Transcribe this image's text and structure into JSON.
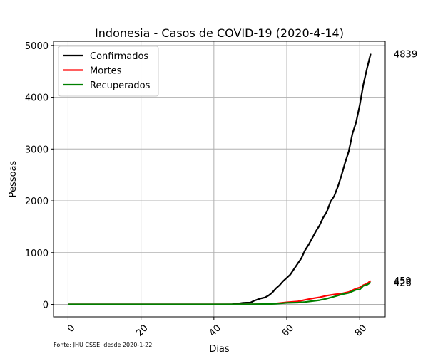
{
  "chart_data": {
    "type": "line",
    "title": "Indonesia - Casos de COVID-19 (2020-4-14)",
    "xlabel": "Dias",
    "ylabel": "Pessoas",
    "xlim": [
      -4,
      87
    ],
    "ylim": [
      -240,
      5080
    ],
    "xticks": [
      0,
      20,
      40,
      60,
      80
    ],
    "yticks": [
      0,
      1000,
      2000,
      3000,
      4000,
      5000
    ],
    "grid": true,
    "legend_position": "top-left",
    "footnote": "Fonte: JHU CSSE, desde 2020-1-22",
    "series": [
      {
        "name": "Confirmados",
        "color": "#000000",
        "end_label": "4839",
        "x": [
          0,
          20,
          40,
          45,
          47,
          48,
          49,
          50,
          51,
          52,
          53,
          54,
          55,
          56,
          57,
          58,
          59,
          60,
          61,
          62,
          63,
          64,
          65,
          66,
          67,
          68,
          69,
          70,
          71,
          72,
          73,
          74,
          75,
          76,
          77,
          78,
          79,
          80,
          81,
          82,
          83
        ],
        "y": [
          0,
          0,
          0,
          2,
          20,
          30,
          34,
          34,
          69,
          96,
          117,
          134,
          172,
          227,
          309,
          369,
          450,
          514,
          579,
          686,
          790,
          893,
          1046,
          1155,
          1285,
          1414,
          1528,
          1677,
          1790,
          1986,
          2092,
          2273,
          2491,
          2738,
          2956,
          3293,
          3512,
          3842,
          4241,
          4557,
          4839
        ]
      },
      {
        "name": "Mortes",
        "color": "#ff0000",
        "end_label": "459",
        "x": [
          0,
          20,
          40,
          50,
          53,
          55,
          57,
          60,
          63,
          65,
          67,
          69,
          71,
          73,
          75,
          77,
          79,
          80,
          81,
          82,
          83
        ],
        "y": [
          0,
          0,
          0,
          1,
          5,
          8,
          19,
          40,
          58,
          87,
          114,
          136,
          170,
          191,
          209,
          240,
          306,
          327,
          373,
          399,
          459
        ]
      },
      {
        "name": "Recuperados",
        "color": "#008000",
        "end_label": "426",
        "x": [
          0,
          20,
          40,
          50,
          55,
          57,
          60,
          63,
          65,
          67,
          69,
          71,
          73,
          75,
          77,
          79,
          80,
          81,
          82,
          83
        ],
        "y": [
          0,
          0,
          0,
          2,
          8,
          11,
          29,
          35,
          46,
          64,
          81,
          112,
          150,
          192,
          222,
          282,
          286,
          359,
          380,
          426
        ]
      }
    ]
  }
}
